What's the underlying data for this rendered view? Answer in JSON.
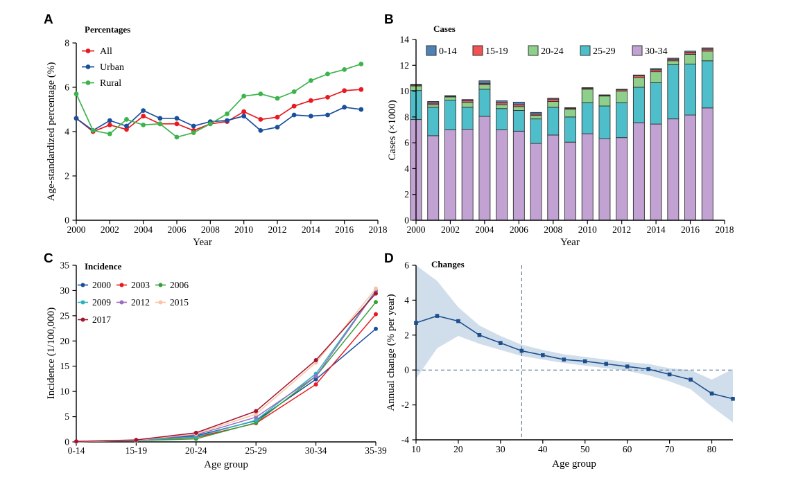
{
  "figure": {
    "background": "#ffffff",
    "panels": [
      {
        "letter": "A"
      },
      {
        "letter": "B"
      },
      {
        "letter": "C"
      },
      {
        "letter": "D"
      }
    ]
  },
  "chart_data": [
    {
      "panel": "A",
      "type": "line",
      "legend_title": "Percentages",
      "xlabel": "Year",
      "ylabel": "Age-standardized percentage (%)",
      "x_years": [
        2000,
        2001,
        2002,
        2003,
        2004,
        2005,
        2006,
        2007,
        2008,
        2009,
        2010,
        2011,
        2012,
        2013,
        2014,
        2015,
        2016,
        2017
      ],
      "xticks": [
        2000,
        2002,
        2004,
        2006,
        2008,
        2010,
        2012,
        2014,
        2016,
        2018
      ],
      "xlim": [
        2000,
        2018
      ],
      "ylim": [
        0,
        8
      ],
      "yticks": [
        0,
        2,
        4,
        6,
        8
      ],
      "grid": false,
      "legend_position": "top-left",
      "series": [
        {
          "name": "All",
          "color": "#e8191f",
          "values": [
            4.6,
            4.0,
            4.3,
            4.1,
            4.7,
            4.35,
            4.35,
            4.05,
            4.35,
            4.45,
            4.9,
            4.55,
            4.65,
            5.15,
            5.4,
            5.55,
            5.85,
            5.9
          ]
        },
        {
          "name": "Urban",
          "color": "#1a4f9c",
          "values": [
            4.6,
            4.05,
            4.5,
            4.25,
            4.95,
            4.6,
            4.6,
            4.25,
            4.45,
            4.5,
            4.7,
            4.05,
            4.2,
            4.75,
            4.7,
            4.75,
            5.1,
            5.0
          ]
        },
        {
          "name": "Rural",
          "color": "#3cb44b",
          "values": [
            5.7,
            4.05,
            3.9,
            4.55,
            4.3,
            4.35,
            3.75,
            3.95,
            4.35,
            4.8,
            5.6,
            5.7,
            5.5,
            5.8,
            6.3,
            6.6,
            6.8,
            7.05
          ]
        }
      ]
    },
    {
      "panel": "B",
      "type": "stacked-bar",
      "legend_title": "Cases",
      "xlabel": "Year",
      "ylabel": "Cases (×1000)",
      "x_years": [
        2000,
        2001,
        2002,
        2003,
        2004,
        2005,
        2006,
        2007,
        2008,
        2009,
        2010,
        2011,
        2012,
        2013,
        2014,
        2015,
        2016,
        2017
      ],
      "xticks": [
        2000,
        2002,
        2004,
        2006,
        2008,
        2010,
        2012,
        2014,
        2016,
        2018
      ],
      "xlim": [
        2000,
        2018
      ],
      "ylim": [
        0,
        14
      ],
      "yticks": [
        0,
        2,
        4,
        6,
        8,
        10,
        12,
        14
      ],
      "bar_outline": "#2f2f2f",
      "stacking": "bottom-to-top",
      "legend_order": [
        "0-14",
        "15-19",
        "20-24",
        "25-29",
        "30-34"
      ],
      "series_bottom_to_top": [
        {
          "name": "30-34",
          "color": "#c2a2d3",
          "values": [
            7.8,
            6.55,
            7.0,
            7.05,
            8.05,
            7.0,
            6.9,
            5.95,
            6.6,
            6.05,
            6.7,
            6.3,
            6.4,
            7.55,
            7.45,
            7.85,
            8.15,
            8.7
          ]
        },
        {
          "name": "25-29",
          "color": "#4ebfca",
          "values": [
            2.25,
            2.2,
            2.3,
            1.7,
            2.1,
            1.65,
            1.6,
            1.9,
            2.15,
            1.95,
            2.4,
            2.55,
            2.7,
            2.75,
            3.2,
            4.2,
            3.95,
            3.65
          ]
        },
        {
          "name": "20-24",
          "color": "#8ed08b",
          "values": [
            0.35,
            0.2,
            0.25,
            0.37,
            0.35,
            0.3,
            0.3,
            0.27,
            0.45,
            0.6,
            1.05,
            0.77,
            0.9,
            0.75,
            0.85,
            0.3,
            0.75,
            0.75
          ]
        },
        {
          "name": "15-19",
          "color": "#f25252",
          "values": [
            0.07,
            0.12,
            0.05,
            0.13,
            0.1,
            0.15,
            0.15,
            0.1,
            0.18,
            0.07,
            0.07,
            0.05,
            0.1,
            0.15,
            0.15,
            0.12,
            0.15,
            0.15
          ]
        },
        {
          "name": "0-14",
          "color": "#4f81b5",
          "values": [
            0.06,
            0.13,
            0.05,
            0.1,
            0.2,
            0.15,
            0.2,
            0.13,
            0.07,
            0.05,
            0.05,
            0.04,
            0.05,
            0.05,
            0.1,
            0.08,
            0.1,
            0.1
          ]
        }
      ]
    },
    {
      "panel": "C",
      "type": "line",
      "legend_title": "Incidence",
      "xlabel": "Age group",
      "ylabel": "Incidence (1/100,000)",
      "categories": [
        "0-14",
        "15-19",
        "20-24",
        "25-29",
        "30-34",
        "35-39"
      ],
      "ylim": [
        0,
        35
      ],
      "yticks": [
        0,
        5,
        10,
        15,
        20,
        25,
        30,
        35
      ],
      "legend_position": "top-left",
      "series": [
        {
          "name": "2000",
          "color": "#1a4f9c",
          "values": [
            0.05,
            0.3,
            1.2,
            4.2,
            12.4,
            22.4
          ]
        },
        {
          "name": "2003",
          "color": "#e8191f",
          "values": [
            0.05,
            0.3,
            0.9,
            3.7,
            11.4,
            25.3
          ]
        },
        {
          "name": "2006",
          "color": "#36a13a",
          "values": [
            0.05,
            0.25,
            0.6,
            3.8,
            13.0,
            27.7
          ]
        },
        {
          "name": "2009",
          "color": "#29b2bc",
          "values": [
            0.05,
            0.3,
            1.0,
            4.3,
            13.5,
            30.0
          ]
        },
        {
          "name": "2012",
          "color": "#9a6cc0",
          "values": [
            0.05,
            0.3,
            1.4,
            4.9,
            13.0,
            29.9
          ]
        },
        {
          "name": "2015",
          "color": "#fac4a5",
          "values": [
            0.05,
            0.35,
            1.6,
            5.5,
            15.7,
            30.4
          ]
        },
        {
          "name": "2017",
          "color": "#a3142f",
          "values": [
            0.1,
            0.4,
            1.8,
            6.1,
            16.2,
            29.4
          ]
        }
      ]
    },
    {
      "panel": "D",
      "type": "line-band",
      "legend_title": "Changes",
      "xlabel": "Age group",
      "ylabel": "Annual change (% per year)",
      "x_ages": [
        10,
        15,
        20,
        25,
        30,
        35,
        40,
        45,
        50,
        55,
        60,
        65,
        70,
        75,
        80,
        85
      ],
      "xticks": [
        10,
        20,
        30,
        40,
        50,
        60,
        70,
        80
      ],
      "xlim": [
        10,
        85
      ],
      "ylim": [
        -4,
        6
      ],
      "yticks": [
        -4,
        -2,
        0,
        2,
        4,
        6
      ],
      "line_color": "#1d4e8c",
      "band_color": "#d0deec",
      "dashed_color": "#44688f",
      "values": [
        2.7,
        3.1,
        2.8,
        2.0,
        1.55,
        1.1,
        0.85,
        0.6,
        0.5,
        0.35,
        0.2,
        0.05,
        -0.25,
        -0.55,
        -1.35,
        -1.65
      ],
      "ci_lower": [
        -0.5,
        1.25,
        1.95,
        1.5,
        1.15,
        0.8,
        0.6,
        0.4,
        0.25,
        0.1,
        -0.05,
        -0.3,
        -0.65,
        -1.1,
        -2.1,
        -3.0
      ],
      "ci_upper": [
        6.0,
        5.1,
        3.6,
        2.55,
        1.95,
        1.45,
        1.15,
        0.9,
        0.75,
        0.6,
        0.45,
        0.35,
        0.1,
        0.0,
        -0.55,
        0.05
      ],
      "reference_lines": {
        "horizontal_y": 0,
        "vertical_x": 35
      }
    }
  ]
}
